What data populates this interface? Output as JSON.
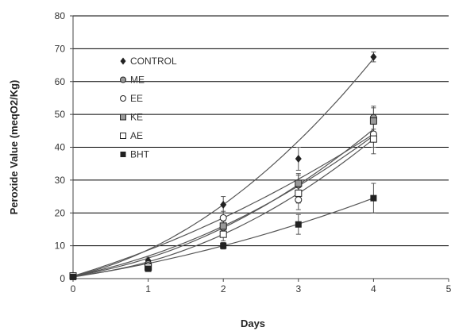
{
  "chart_data": {
    "type": "scatter",
    "xlabel": "Days",
    "ylabel": "Peroxide Value (meqO2/Kg)",
    "xlim": [
      0,
      5
    ],
    "ylim": [
      0,
      80
    ],
    "x_ticks": [
      "0",
      "1",
      "2",
      "3",
      "4",
      "5"
    ],
    "y_ticks": [
      "0",
      "10",
      "20",
      "30",
      "40",
      "50",
      "60",
      "70",
      "80"
    ],
    "grid": "horizontal",
    "legend_position": "top-left",
    "trendline": "polynomial",
    "series": [
      {
        "name": "CONTROL",
        "marker": "diamond-filled",
        "x": [
          0,
          1,
          2,
          3,
          4
        ],
        "y": [
          0.8,
          5.5,
          22.5,
          36.5,
          67.5
        ],
        "error": [
          0.5,
          1.0,
          2.5,
          3.5,
          1.5
        ],
        "trend_y_at_4": 67
      },
      {
        "name": "ME",
        "marker": "circle-grey",
        "x": [
          0,
          1,
          2,
          3,
          4
        ],
        "y": [
          0.8,
          4.5,
          15.5,
          28.5,
          49
        ],
        "error": [
          0.5,
          1.0,
          2.0,
          3.0,
          3.5
        ],
        "trend_y_at_4": 45.5
      },
      {
        "name": "EE",
        "marker": "circle-open",
        "x": [
          0,
          1,
          2,
          3,
          4
        ],
        "y": [
          0.8,
          4,
          18.5,
          24,
          44
        ],
        "error": [
          0.5,
          1.0,
          2.0,
          3.0,
          4.0
        ],
        "trend_y_at_4": 44
      },
      {
        "name": "KE",
        "marker": "square-grey",
        "x": [
          0,
          1,
          2,
          3,
          4
        ],
        "y": [
          0.8,
          3.5,
          16,
          29,
          48
        ],
        "error": [
          0.5,
          1.0,
          2.0,
          3.0,
          4.0
        ],
        "trend_y_at_4": 43.5
      },
      {
        "name": "AE",
        "marker": "square-open",
        "x": [
          0,
          1,
          2,
          3,
          4
        ],
        "y": [
          0.8,
          3.5,
          13.5,
          26,
          42.5
        ],
        "error": [
          0.5,
          1.0,
          2.0,
          3.0,
          4.5
        ],
        "trend_y_at_4": 42.5
      },
      {
        "name": "BHT",
        "marker": "square-filled",
        "x": [
          0,
          1,
          2,
          3,
          4
        ],
        "y": [
          0.5,
          3,
          10,
          16.5,
          24.5
        ],
        "error": [
          0.3,
          0.8,
          1.0,
          3.0,
          4.5
        ],
        "trend_y_at_4": 24.5
      }
    ],
    "colors": {
      "line": "#555555",
      "grid": "#000000",
      "marker": "#222222",
      "grey_fill": "#999999"
    }
  }
}
